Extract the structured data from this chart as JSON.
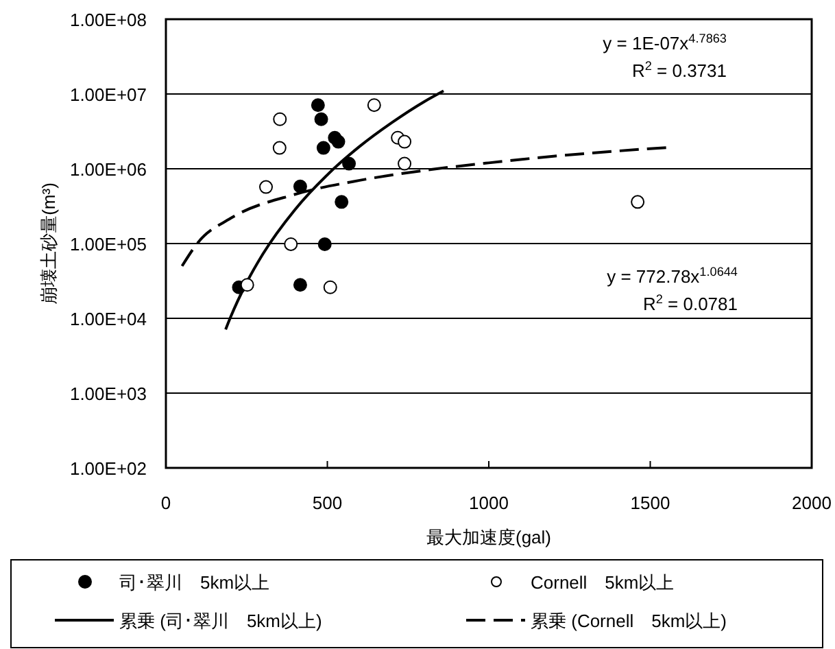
{
  "chart_data": {
    "type": "scatter",
    "xlabel": "最大加速度(gal)",
    "ylabel": "崩壊土砂量(m³)",
    "log": "y",
    "grid": "y",
    "legend": "bottom",
    "xlim": [
      0,
      2000
    ],
    "xticks": [
      0,
      500,
      1000,
      1500,
      2000
    ],
    "ylim": [
      100,
      100000000
    ],
    "yticks": [
      {
        "value": 100,
        "label": "1.00E+02"
      },
      {
        "value": 1000,
        "label": "1.00E+03"
      },
      {
        "value": 10000,
        "label": "1.00E+04"
      },
      {
        "value": 100000,
        "label": "1.00E+05"
      },
      {
        "value": 1000000,
        "label": "1.00E+06"
      },
      {
        "value": 10000000,
        "label": "1.00E+07"
      },
      {
        "value": 100000000,
        "label": "1.00E+08"
      }
    ],
    "annotations": [
      "y = 1E-07x$^{4.7863}$",
      "R$^{2}$ = 0.3731",
      "y = 772.78x$^{1.0644}$",
      "R$^{2}$ = 0.0781"
    ],
    "series": [
      {
        "name": "司･翠川　5km以上",
        "marker": "circle",
        "color": "#000000",
        "x": [
          471,
          481,
          523,
          534,
          488,
          567,
          416,
          544,
          492,
          226,
          416
        ],
        "values": [
          7100000,
          4600000,
          2600000,
          2300000,
          1900000,
          1170000,
          580000,
          360000,
          98000,
          26000,
          28000
        ]
      },
      {
        "name": "Cornell　5km以上",
        "marker": "circle",
        "color": "#ffffff",
        "x": [
          353,
          645,
          352,
          310,
          387,
          252,
          509,
          718,
          739,
          739,
          1461
        ],
        "values": [
          4600000,
          7100000,
          1900000,
          570000,
          98000,
          28000,
          26000,
          2600000,
          2300000,
          1170000,
          360000
        ]
      },
      {
        "name": "累乗 (司･翠川　5km以上)",
        "type": "line",
        "marker": "none",
        "line_style": "solid",
        "color": "#000000",
        "x": [
          185,
          200,
          250,
          300,
          400,
          500,
          600,
          700,
          800,
          860
        ],
        "values": [
          7100,
          10300,
          30000,
          72000,
          285000,
          830000,
          1990000,
          4150000,
          7900000,
          11000000
        ]
      },
      {
        "name": "累乗 (Cornell　5km以上)",
        "type": "line",
        "marker": "none",
        "line_style": "dashed",
        "color": "#000000",
        "x": [
          50,
          100,
          200,
          400,
          600,
          800,
          1000,
          1200,
          1400,
          1550
        ],
        "values": [
          50000,
          104000,
          217000,
          455000,
          700000,
          950000,
          1200000,
          1470000,
          1730000,
          1920000
        ]
      }
    ]
  }
}
